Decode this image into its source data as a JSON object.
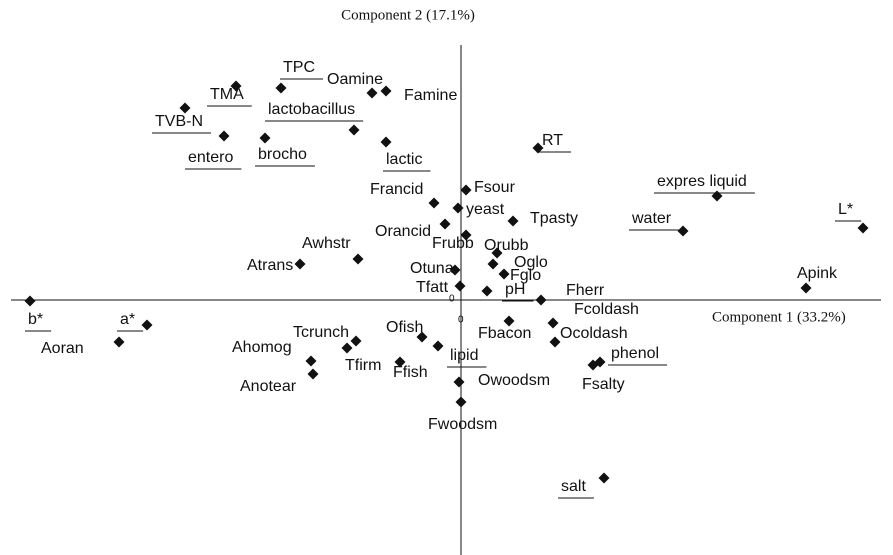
{
  "chart_data": {
    "type": "scatter",
    "x_label": "Component 1 (33.2%)",
    "y_label": "Component 2 (17.1%)",
    "xlim": [
      -4.5,
      4.3
    ],
    "ylim": [
      -2.55,
      2.6
    ],
    "origin_label": "0",
    "color": "#111111",
    "labels": [
      "TMA",
      "TPC",
      "Oamine",
      "Famine",
      "TVB-N",
      "lactobacillus",
      "entero",
      "brocho",
      "lactic",
      "RT",
      "Francid",
      "Fsour",
      "yeast",
      "Tpasty",
      "expres liquid",
      "water",
      "L*",
      "Orancid",
      "Frubb",
      "Awhstr",
      "Orubb",
      "Oglo",
      "Fglo",
      "Atrans",
      "Otuna",
      "Tfatt",
      "pH",
      "Fherr",
      "Apink",
      "b*",
      "a*",
      "Aoran",
      "Fcoldash",
      "Fbacon",
      "Ocoldash",
      "Ofish",
      "Tcrunch",
      "Ahomog",
      "Tfirm",
      "Ffish",
      "lipid",
      "phenol",
      "Fsalty",
      "Anotear",
      "Owoodsm",
      "Fwoodsm",
      "salt"
    ],
    "x": [
      -2.25,
      -1.8,
      -0.89,
      -0.75,
      -2.76,
      -1.07,
      -2.37,
      -1.96,
      -0.75,
      0.77,
      -0.27,
      0.05,
      -0.03,
      0.52,
      2.56,
      2.22,
      4.02,
      -0.16,
      0.05,
      -1.03,
      0.36,
      0.32,
      0.43,
      -1.61,
      -0.06,
      -0.01,
      0.26,
      0.8,
      3.45,
      -4.31,
      -3.14,
      -3.42,
      0.92,
      0.48,
      0.94,
      -0.39,
      -1.05,
      -1.5,
      -1.14,
      -0.61,
      -0.23,
      1.39,
      1.32,
      -1.48,
      -0.02,
      0.0,
      1.43
    ],
    "y": [
      2.14,
      2.12,
      2.07,
      2.09,
      1.92,
      1.7,
      1.64,
      1.62,
      1.58,
      1.52,
      0.97,
      1.1,
      0.92,
      0.79,
      1.04,
      0.69,
      0.72,
      0.76,
      0.65,
      0.41,
      0.47,
      0.36,
      0.26,
      0.36,
      0.3,
      0.14,
      0.09,
      0.0,
      0.12,
      -0.01,
      -0.25,
      -0.42,
      -0.23,
      -0.21,
      -0.42,
      -0.37,
      -0.41,
      -0.61,
      -0.48,
      -0.62,
      -0.46,
      -0.62,
      -0.65,
      -0.74,
      -0.82,
      -1.02,
      -1.78
    ],
    "underlined": [
      true,
      true,
      false,
      false,
      true,
      true,
      true,
      true,
      true,
      true,
      false,
      false,
      false,
      false,
      true,
      true,
      true,
      false,
      false,
      false,
      false,
      false,
      false,
      false,
      false,
      false,
      true,
      false,
      false,
      true,
      true,
      false,
      false,
      false,
      false,
      false,
      false,
      false,
      false,
      false,
      true,
      true,
      false,
      false,
      false,
      false,
      true
    ]
  }
}
